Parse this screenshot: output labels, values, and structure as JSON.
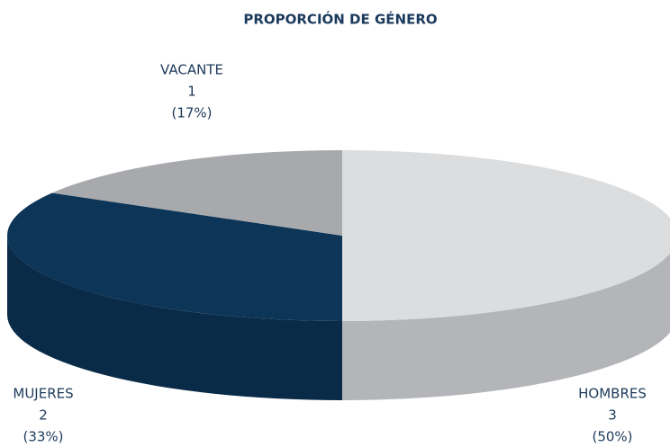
{
  "chart_data": {
    "type": "pie3d",
    "title": "PROPORCIÓN DE GÉNERO",
    "categories": [
      "HOMBRES",
      "MUJERES",
      "VACANTE"
    ],
    "values": [
      3,
      2,
      1
    ],
    "percent_labels": [
      "(50%)",
      "(33%)",
      "(17%)"
    ],
    "colors": [
      "#dcdddf",
      "#0d3557",
      "#a7a9ac"
    ],
    "side_colors": [
      "#b3b5b8",
      "#0a2b48",
      "#8e9093"
    ]
  }
}
